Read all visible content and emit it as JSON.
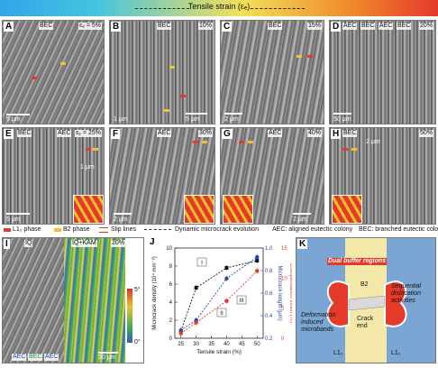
{
  "header": {
    "title": "Tensile strain (εₑ)"
  },
  "panels": {
    "A": {
      "letter": "A",
      "tag": "BEC",
      "strain": "εₑ = 5%",
      "scale": "5 μm"
    },
    "B": {
      "letter": "B",
      "tag": "BEC",
      "strain": "10%",
      "scale": "5 μm",
      "scale2": "1 μm"
    },
    "C": {
      "letter": "C",
      "tag": "BEC",
      "strain": "15%",
      "scale": "2 μm"
    },
    "D": {
      "letter": "D",
      "tags": [
        "AEC",
        "BEC",
        "AEC",
        "BEC"
      ],
      "strain": "20%",
      "scale": "50 μm"
    },
    "E": {
      "letter": "E",
      "tags": [
        "BEC",
        "AEC"
      ],
      "strain": "εₑ = 25%",
      "scale": "5 μm",
      "scale2": "1 μm"
    },
    "F": {
      "letter": "F",
      "tag": "AEC",
      "strain": "30%",
      "scale": "2 μm"
    },
    "G": {
      "letter": "G",
      "tag": "AEC",
      "strain": "40%",
      "scale": "2 μm"
    },
    "H": {
      "letter": "H",
      "tag": "BEC",
      "strain": "50%",
      "scale": "2 μm"
    }
  },
  "legend": {
    "l12": "L1₂ phase",
    "b2": "B2 phase",
    "slip": "Slip lines",
    "crack": "Dynamic microcrack evolution",
    "aec": "AEC: aligned eutectic colony",
    "bec": "BEC: branched eutectic colony"
  },
  "panelI": {
    "letter": "I",
    "left_title": "IQ",
    "right_title": "IQ+KAM",
    "strain": "20%",
    "scale": "50 μm",
    "cb_top": "5°",
    "cb_bottom": "0°",
    "tags": [
      "AEC",
      "BEC",
      "AEC"
    ]
  },
  "panelJ": {
    "letter": "J"
  },
  "panelK": {
    "letter": "K",
    "title": "Dual buffer regions",
    "left_text": "Deformation induced microbands",
    "right_text": "Sequential dislocation activities",
    "b2": "B2",
    "crack": "Crack end",
    "l12_left": "L1₂",
    "l12_right": "L1₂"
  },
  "colors": {
    "l12": "#e53a2a",
    "b2": "#f2c22a",
    "series1": "#111111",
    "series2": "#2b47a8",
    "series3": "#e53a2a"
  },
  "chart_data": {
    "type": "line",
    "xlabel": "Tensile strain (%)",
    "ylabel": "Microcrack density (10⁴ mm⁻²)",
    "y2label": "Microcrack length (μm)",
    "y3label": "Compensation strain (%)",
    "x_ticks": [
      "25",
      "30",
      "35",
      "40",
      "45",
      "50"
    ],
    "xlim": [
      23,
      52
    ],
    "y_ticks": [
      "0",
      "2",
      "4",
      "6",
      "8",
      "10"
    ],
    "ylim": [
      0,
      10
    ],
    "y2_ticks": [
      "0.2",
      "0.4",
      "0.6",
      "0.8",
      "1.0"
    ],
    "y2lim": [
      0.2,
      1.0
    ],
    "y3_ticks": [
      "0",
      "5",
      "10",
      "15"
    ],
    "y3lim": [
      0,
      15
    ],
    "annotations": [
      "I",
      "II",
      "III"
    ],
    "series": [
      {
        "axis": "y",
        "x": [
          25,
          30,
          40,
          50
        ],
        "values": [
          0.8,
          5.6,
          7.8,
          8.6
        ]
      },
      {
        "axis": "y2",
        "x": [
          25,
          30,
          40,
          50
        ],
        "values": [
          0.27,
          0.36,
          0.73,
          0.92
        ]
      },
      {
        "axis": "y3",
        "x": [
          25,
          30,
          40,
          50
        ],
        "values": [
          0.8,
          2.6,
          6.2,
          11.2
        ]
      }
    ]
  }
}
